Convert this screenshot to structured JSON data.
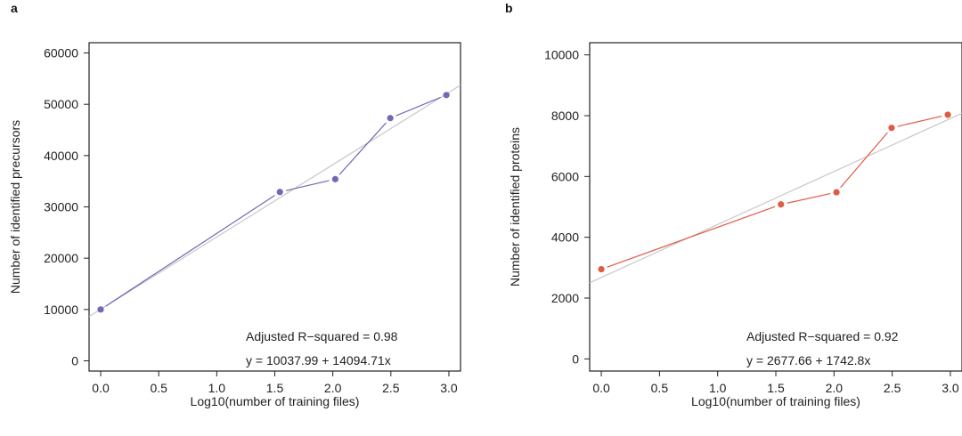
{
  "chart_data": [
    {
      "type": "scatter",
      "panel_label": "a",
      "xlabel": "Log10(number of training files)",
      "ylabel": "Number of identified precursors",
      "xlim": [
        -0.1,
        3.1
      ],
      "ylim": [
        -2000,
        62000
      ],
      "xticks": [
        0.0,
        0.5,
        1.0,
        1.5,
        2.0,
        2.5,
        3.0
      ],
      "xtick_labels": [
        "0.0",
        "0.5",
        "1.0",
        "1.5",
        "2.0",
        "2.5",
        "3.0"
      ],
      "yticks": [
        0,
        10000,
        20000,
        30000,
        40000,
        50000,
        60000
      ],
      "ytick_labels": [
        "0",
        "10000",
        "20000",
        "30000",
        "40000",
        "50000",
        "60000"
      ],
      "grid": false,
      "color": "#6f6ab3",
      "fit_color": "#c8c8c8",
      "series": [
        {
          "x": [
            0.0,
            1.544,
            2.021,
            2.495,
            2.978
          ],
          "y": [
            10000,
            32900,
            35400,
            47300,
            51800
          ]
        }
      ],
      "fit": {
        "intercept": 10037.99,
        "slope": 14094.71
      },
      "annotations": [
        "Adjusted R−squared = 0.98",
        "y = 10037.99 + 14094.71x"
      ]
    },
    {
      "type": "scatter",
      "panel_label": "b",
      "xlabel": "Log10(number of training files)",
      "ylabel": "Number of identified proteins",
      "xlim": [
        -0.1,
        3.1
      ],
      "ylim": [
        -400,
        10400
      ],
      "xticks": [
        0.0,
        0.5,
        1.0,
        1.5,
        2.0,
        2.5,
        3.0
      ],
      "xtick_labels": [
        "0.0",
        "0.5",
        "1.0",
        "1.5",
        "2.0",
        "2.5",
        "3.0"
      ],
      "yticks": [
        0,
        2000,
        4000,
        6000,
        8000,
        10000
      ],
      "ytick_labels": [
        "0",
        "2000",
        "4000",
        "6000",
        "8000",
        "10000"
      ],
      "grid": false,
      "color": "#e05a45",
      "fit_color": "#c8c8c8",
      "series": [
        {
          "x": [
            0.0,
            1.544,
            2.021,
            2.495,
            2.978
          ],
          "y": [
            2950,
            5080,
            5480,
            7600,
            8030
          ]
        }
      ],
      "fit": {
        "intercept": 2677.66,
        "slope": 1742.8
      },
      "annotations": [
        "Adjusted R−squared = 0.92",
        "y = 2677.66 + 1742.8x"
      ]
    }
  ]
}
